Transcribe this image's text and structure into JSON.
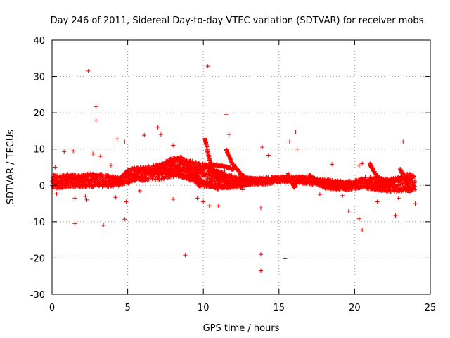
{
  "chart_data": {
    "type": "scatter",
    "title": "Day 246 of 2011, Sidereal Day-to-day VTEC variation (SDTVAR) for receiver mobs",
    "xlabel": "GPS time / hours",
    "ylabel": "SDTVAR / TECUs",
    "xlim": [
      0,
      25
    ],
    "ylim": [
      -30,
      40
    ],
    "xticks": [
      0,
      5,
      10,
      15,
      20,
      25
    ],
    "yticks": [
      -30,
      -20,
      -10,
      0,
      10,
      20,
      30,
      40
    ],
    "xtick_labels": [
      "0",
      "5",
      "10",
      "15",
      "20",
      "25"
    ],
    "ytick_labels": [
      "-30",
      "-20",
      "-10",
      "0",
      "10",
      "20",
      "30",
      "40"
    ],
    "grid": true,
    "marker": "+",
    "series": [
      {
        "name": "SDTVAR",
        "color": "#ff0000",
        "band": {
          "x": [
            0,
            0.5,
            1,
            1.5,
            2,
            2.5,
            3,
            3.5,
            4,
            4.5,
            5,
            5.5,
            6,
            6.5,
            7,
            7.5,
            8,
            8.5,
            9,
            9.5,
            10,
            10.5,
            11,
            11.5,
            12,
            12.5,
            13,
            13.5,
            14,
            14.5,
            15,
            15.5,
            16,
            16.5,
            17,
            17.5,
            18,
            18.5,
            19,
            19.5,
            20,
            20.5,
            21,
            21.5,
            22,
            22.5,
            23,
            23.5,
            24
          ],
          "low": [
            -1,
            -0.8,
            -0.7,
            -0.6,
            -0.5,
            -0.5,
            -0.3,
            -0.5,
            -0.3,
            -0.3,
            0.5,
            1.2,
            1.2,
            1.5,
            1.5,
            1.8,
            2.0,
            2.5,
            1.5,
            0.5,
            -0.8,
            -0.5,
            -0.5,
            -0.5,
            -0.8,
            -0.5,
            0.2,
            0.2,
            0.2,
            0.5,
            0.8,
            0.8,
            1.0,
            0.5,
            0.2,
            0.0,
            -0.3,
            -0.5,
            -1.0,
            -1.3,
            -1.0,
            -0.8,
            -1.0,
            -1.5,
            -1.8,
            -1.8,
            -1.8,
            -1.5,
            -1.5
          ],
          "high": [
            3,
            3.0,
            3.2,
            3.0,
            3.0,
            3.5,
            3.2,
            3.0,
            2.5,
            2.3,
            4.5,
            5.0,
            5.0,
            5.5,
            5.8,
            6.5,
            7.5,
            8.0,
            7.0,
            6.5,
            6.0,
            6.0,
            4.0,
            3.5,
            2.5,
            2.5,
            2.2,
            2.0,
            2.2,
            2.3,
            2.5,
            2.5,
            2.5,
            2.5,
            2.3,
            2.0,
            1.8,
            1.5,
            1.3,
            1.2,
            1.5,
            2.0,
            2.5,
            2.0,
            2.0,
            2.0,
            2.5,
            3.5,
            2.5
          ]
        },
        "traces": [
          {
            "x": [
              6.8,
              7.3,
              7.8,
              8.3,
              8.8,
              9.3,
              9.8
            ],
            "y": [
              3.5,
              5.5,
              7.0,
              7.5,
              6.0,
              3.0,
              -0.5
            ]
          },
          {
            "x": [
              5.2,
              6.0,
              6.8,
              7.5,
              8.3,
              9.0,
              9.8,
              10.5,
              11.0
            ],
            "y": [
              4.5,
              4.5,
              4.0,
              3.5,
              3.0,
              2.5,
              1.5,
              0.0,
              -1.0
            ]
          },
          {
            "x": [
              7.5,
              8.0,
              8.5,
              9.0,
              9.5,
              10.0,
              10.5,
              11.0,
              11.5,
              12.0
            ],
            "y": [
              6.5,
              5.5,
              4.5,
              4.0,
              4.5,
              5.0,
              5.5,
              5.5,
              5.0,
              4.5
            ]
          },
          {
            "x": [
              7.0,
              7.8,
              8.5,
              9.2,
              9.8,
              10.3,
              10.8,
              11.3,
              11.8
            ],
            "y": [
              5.5,
              3.5,
              2.5,
              1.8,
              1.0,
              0.2,
              -0.3,
              -0.5,
              -0.5
            ]
          },
          {
            "x": [
              10.1,
              10.2,
              10.35,
              10.5,
              10.7,
              11.0,
              11.3,
              11.6,
              11.9
            ],
            "y": [
              13,
              11,
              8,
              6,
              4,
              2.5,
              1.5,
              0.8,
              0.2
            ]
          },
          {
            "x": [
              11.5,
              11.7,
              11.9,
              12.2,
              12.5,
              12.8,
              13.2,
              13.6,
              14.0
            ],
            "y": [
              10,
              8,
              6,
              4.5,
              3,
              2,
              1.3,
              0.8,
              0.5
            ]
          },
          {
            "x": [
              10.2,
              10.35,
              10.5,
              10.7,
              10.9,
              11.2,
              11.5,
              11.8,
              12.2,
              12.6
            ],
            "y": [
              5.5,
              5.0,
              4.5,
              4.0,
              3.5,
              2.8,
              1.8,
              1.0,
              0.3,
              -0.3
            ]
          },
          {
            "x": [
              15.6,
              15.8,
              16.0,
              16.2,
              16.4
            ],
            "y": [
              3.0,
              1.0,
              -0.5,
              1.0,
              2.0
            ]
          },
          {
            "x": [
              17.0,
              17.3,
              17.6,
              18.0,
              18.5,
              19.0
            ],
            "y": [
              3.0,
              1.5,
              0.5,
              -0.5,
              -0.8,
              -1.0
            ]
          },
          {
            "x": [
              21.0,
              21.2,
              21.4,
              21.6,
              21.8,
              22.0,
              22.2
            ],
            "y": [
              6.0,
              4.5,
              3.0,
              2.0,
              1.0,
              0.5,
              0.2
            ]
          },
          {
            "x": [
              23.0,
              23.2,
              23.4,
              23.6
            ],
            "y": [
              4.5,
              3.0,
              1.0,
              -2.0
            ]
          }
        ],
        "points": [
          [
            2.4,
            31.5
          ],
          [
            10.3,
            32.8
          ],
          [
            2.9,
            21.7
          ],
          [
            2.9,
            18.0
          ],
          [
            11.5,
            19.5
          ],
          [
            7.0,
            16.0
          ],
          [
            16.1,
            14.7
          ],
          [
            6.1,
            13.8
          ],
          [
            7.2,
            14.0
          ],
          [
            11.7,
            14.0
          ],
          [
            4.3,
            12.8
          ],
          [
            4.8,
            12.0
          ],
          [
            15.7,
            12.0
          ],
          [
            23.2,
            12.0
          ],
          [
            8.0,
            11.0
          ],
          [
            13.9,
            10.5
          ],
          [
            16.2,
            10.0
          ],
          [
            0.8,
            9.3
          ],
          [
            1.4,
            9.5
          ],
          [
            2.7,
            8.7
          ],
          [
            3.2,
            8.0
          ],
          [
            14.3,
            8.3
          ],
          [
            18.5,
            5.8
          ],
          [
            20.3,
            5.5
          ],
          [
            20.5,
            6.0
          ],
          [
            0.2,
            5.0
          ],
          [
            1.5,
            -3.5
          ],
          [
            2.2,
            -3.0
          ],
          [
            2.3,
            -4.0
          ],
          [
            4.2,
            -3.3
          ],
          [
            4.9,
            -4.5
          ],
          [
            8.0,
            -3.8
          ],
          [
            9.6,
            -3.5
          ],
          [
            10.0,
            -4.5
          ],
          [
            10.4,
            -5.6
          ],
          [
            11.0,
            -5.6
          ],
          [
            13.8,
            -6.2
          ],
          [
            19.6,
            -7.1
          ],
          [
            20.3,
            -9.2
          ],
          [
            20.5,
            -12.3
          ],
          [
            22.7,
            -8.3
          ],
          [
            24.0,
            -5.0
          ],
          [
            21.5,
            -4.5
          ],
          [
            1.5,
            -10.5
          ],
          [
            3.4,
            -11.0
          ],
          [
            4.8,
            -9.3
          ],
          [
            8.8,
            -19.2
          ],
          [
            13.8,
            -19.0
          ],
          [
            15.4,
            -20.2
          ],
          [
            13.8,
            -23.5
          ],
          [
            0.3,
            -2.3
          ],
          [
            3.9,
            5.5
          ],
          [
            5.8,
            -1.5
          ],
          [
            12.6,
            -1.2
          ],
          [
            17.7,
            -2.5
          ],
          [
            19.2,
            -2.8
          ],
          [
            22.9,
            -3.5
          ]
        ]
      }
    ]
  }
}
